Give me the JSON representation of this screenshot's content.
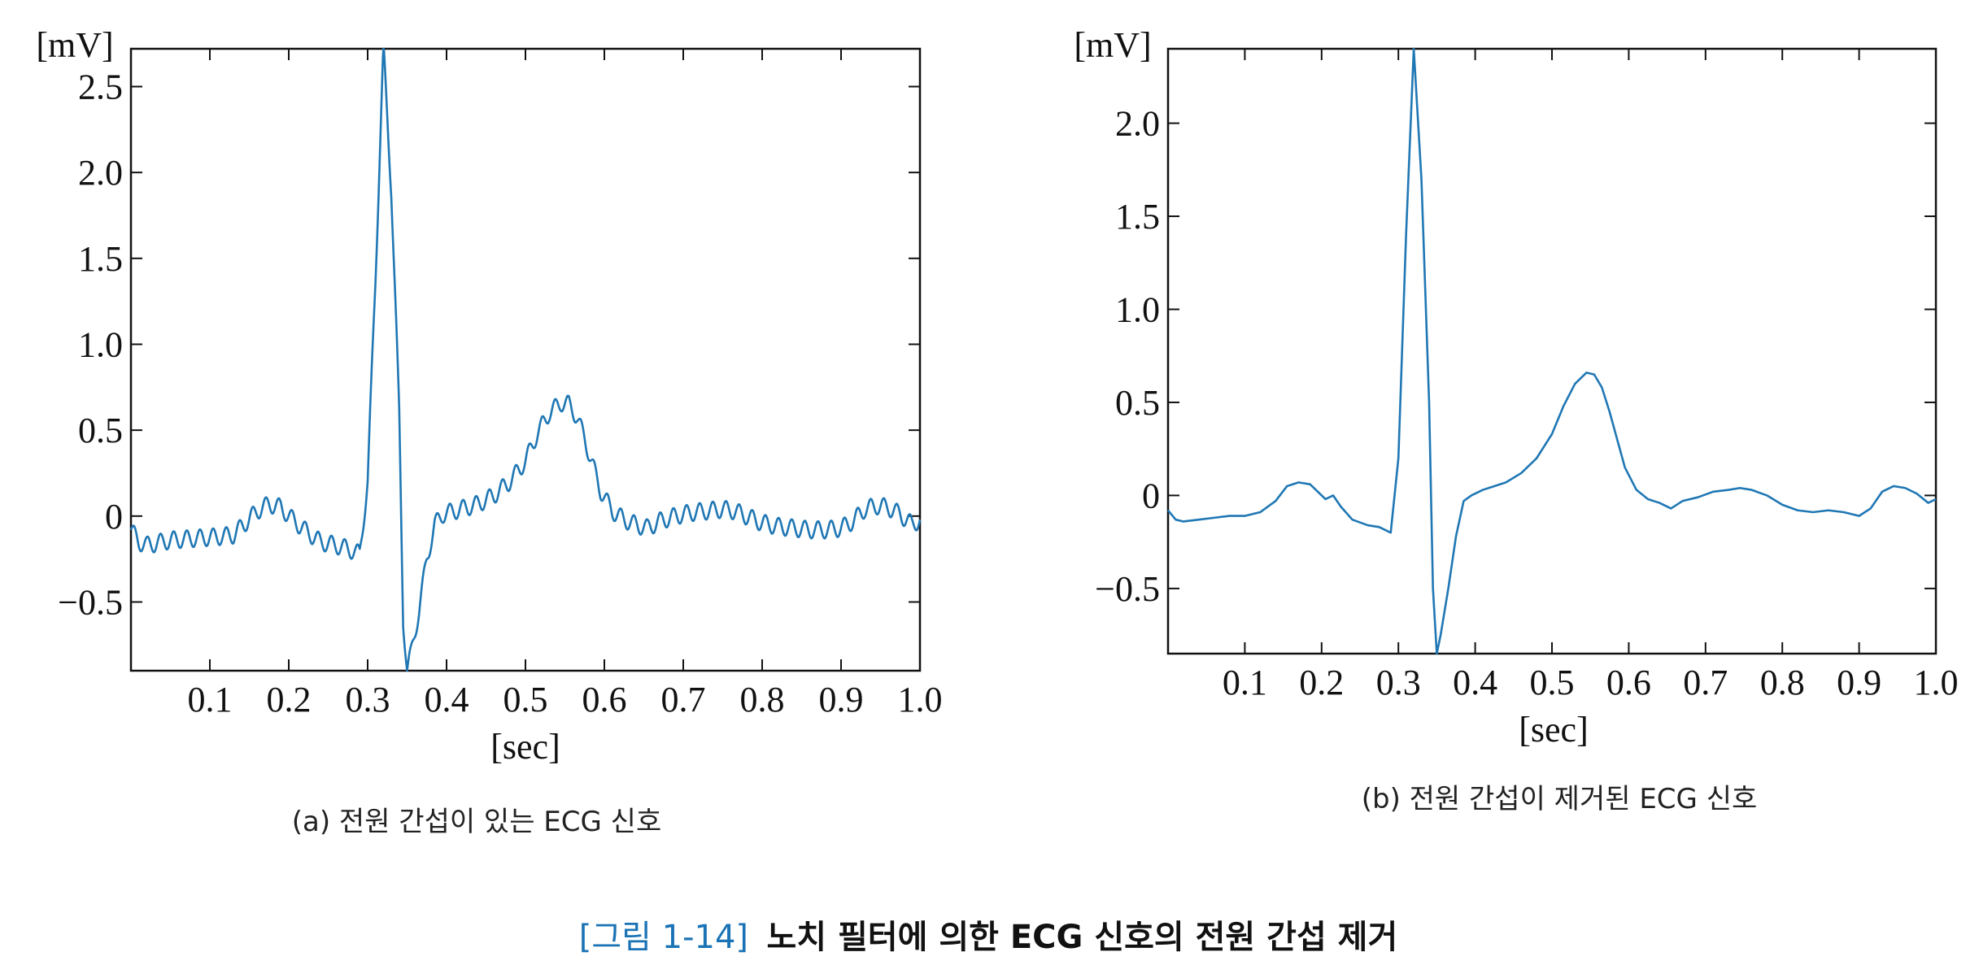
{
  "chart_data": [
    {
      "type": "line",
      "ylabel": "[mV]",
      "xlabel": "[sec]",
      "caption": "(a) 전원 간섭이 있는 ECG 신호",
      "xlim": [
        0.0,
        1.0
      ],
      "ylim": [
        -0.9,
        2.72
      ],
      "x_ticks": [
        0.1,
        0.2,
        0.3,
        0.4,
        0.5,
        0.6,
        0.7,
        0.8,
        0.9,
        1.0
      ],
      "x_tick_labels": [
        "0.1",
        "0.2",
        "0.3",
        "0.4",
        "0.5",
        "0.6",
        "0.7",
        "0.8",
        "0.9",
        "1.0"
      ],
      "y_ticks": [
        -0.5,
        0,
        0.5,
        1.0,
        1.5,
        2.0,
        2.5
      ],
      "y_tick_labels": [
        "−0.5",
        "0",
        "0.5",
        "1.0",
        "1.5",
        "2.0",
        "2.5"
      ],
      "grid": false,
      "series": [
        {
          "color": "#1f77b4",
          "points": [
            [
              0.0,
              -0.08
            ],
            [
              0.01,
              -0.15
            ],
            [
              0.02,
              -0.17
            ],
            [
              0.03,
              -0.16
            ],
            [
              0.05,
              -0.14
            ],
            [
              0.08,
              -0.13
            ],
            [
              0.11,
              -0.12
            ],
            [
              0.13,
              -0.11
            ],
            [
              0.145,
              -0.04
            ],
            [
              0.16,
              0.03
            ],
            [
              0.175,
              0.07
            ],
            [
              0.19,
              0.05
            ],
            [
              0.205,
              -0.02
            ],
            [
              0.22,
              -0.08
            ],
            [
              0.24,
              -0.15
            ],
            [
              0.26,
              -0.17
            ],
            [
              0.275,
              -0.19
            ],
            [
              0.29,
              -0.22
            ],
            [
              0.3,
              0.2
            ],
            [
              0.31,
              1.4
            ],
            [
              0.32,
              2.72
            ],
            [
              0.33,
              1.9
            ],
            [
              0.34,
              0.6
            ],
            [
              0.345,
              -0.6
            ],
            [
              0.35,
              -0.9
            ],
            [
              0.355,
              -0.8
            ],
            [
              0.365,
              -0.55
            ],
            [
              0.375,
              -0.25
            ],
            [
              0.385,
              -0.05
            ],
            [
              0.395,
              0.01
            ],
            [
              0.41,
              0.03
            ],
            [
              0.425,
              0.05
            ],
            [
              0.44,
              0.07
            ],
            [
              0.46,
              0.12
            ],
            [
              0.48,
              0.2
            ],
            [
              0.5,
              0.32
            ],
            [
              0.515,
              0.48
            ],
            [
              0.53,
              0.6
            ],
            [
              0.545,
              0.66
            ],
            [
              0.555,
              0.65
            ],
            [
              0.565,
              0.58
            ],
            [
              0.575,
              0.45
            ],
            [
              0.585,
              0.3
            ],
            [
              0.595,
              0.15
            ],
            [
              0.61,
              0.03
            ],
            [
              0.625,
              -0.02
            ],
            [
              0.64,
              -0.05
            ],
            [
              0.655,
              -0.07
            ],
            [
              0.67,
              -0.03
            ],
            [
              0.69,
              0.0
            ],
            [
              0.71,
              0.02
            ],
            [
              0.73,
              0.03
            ],
            [
              0.75,
              0.04
            ],
            [
              0.765,
              0.03
            ],
            [
              0.78,
              0.0
            ],
            [
              0.8,
              -0.04
            ],
            [
              0.82,
              -0.06
            ],
            [
              0.84,
              -0.07
            ],
            [
              0.86,
              -0.08
            ],
            [
              0.88,
              -0.08
            ],
            [
              0.9,
              -0.07
            ],
            [
              0.915,
              -0.03
            ],
            [
              0.93,
              0.04
            ],
            [
              0.945,
              0.06
            ],
            [
              0.96,
              0.05
            ],
            [
              0.975,
              0.01
            ],
            [
              0.99,
              -0.05
            ],
            [
              1.0,
              -0.02
            ]
          ],
          "interference": {
            "frequency_hz": 60,
            "amplitude_mv": 0.05
          }
        }
      ]
    },
    {
      "type": "line",
      "ylabel": "[mV]",
      "xlabel": "[sec]",
      "caption": "(b) 전원 간섭이 제거된 ECG 신호",
      "xlim": [
        0.0,
        1.0
      ],
      "ylim": [
        -0.85,
        2.4
      ],
      "x_ticks": [
        0.1,
        0.2,
        0.3,
        0.4,
        0.5,
        0.6,
        0.7,
        0.8,
        0.9,
        1.0
      ],
      "x_tick_labels": [
        "0.1",
        "0.2",
        "0.3",
        "0.4",
        "0.5",
        "0.6",
        "0.7",
        "0.8",
        "0.9",
        "1.0"
      ],
      "y_ticks": [
        -0.5,
        0,
        0.5,
        1.0,
        1.5,
        2.0
      ],
      "y_tick_labels": [
        "−0.5",
        "0",
        "0.5",
        "1.0",
        "1.5",
        "2.0"
      ],
      "grid": false,
      "series": [
        {
          "color": "#1f77b4",
          "points": [
            [
              0.0,
              -0.08
            ],
            [
              0.01,
              -0.13
            ],
            [
              0.02,
              -0.14
            ],
            [
              0.04,
              -0.13
            ],
            [
              0.06,
              -0.12
            ],
            [
              0.08,
              -0.11
            ],
            [
              0.1,
              -0.11
            ],
            [
              0.12,
              -0.09
            ],
            [
              0.14,
              -0.03
            ],
            [
              0.155,
              0.05
            ],
            [
              0.17,
              0.07
            ],
            [
              0.185,
              0.06
            ],
            [
              0.195,
              0.02
            ],
            [
              0.205,
              -0.02
            ],
            [
              0.215,
              0.0
            ],
            [
              0.225,
              -0.06
            ],
            [
              0.24,
              -0.13
            ],
            [
              0.26,
              -0.16
            ],
            [
              0.275,
              -0.17
            ],
            [
              0.29,
              -0.2
            ],
            [
              0.3,
              0.2
            ],
            [
              0.31,
              1.4
            ],
            [
              0.32,
              2.4
            ],
            [
              0.33,
              1.7
            ],
            [
              0.34,
              0.5
            ],
            [
              0.345,
              -0.5
            ],
            [
              0.35,
              -0.85
            ],
            [
              0.355,
              -0.75
            ],
            [
              0.365,
              -0.5
            ],
            [
              0.375,
              -0.22
            ],
            [
              0.385,
              -0.03
            ],
            [
              0.395,
              0.0
            ],
            [
              0.41,
              0.03
            ],
            [
              0.425,
              0.05
            ],
            [
              0.44,
              0.07
            ],
            [
              0.46,
              0.12
            ],
            [
              0.48,
              0.2
            ],
            [
              0.5,
              0.33
            ],
            [
              0.515,
              0.48
            ],
            [
              0.53,
              0.6
            ],
            [
              0.545,
              0.66
            ],
            [
              0.555,
              0.65
            ],
            [
              0.565,
              0.58
            ],
            [
              0.575,
              0.45
            ],
            [
              0.585,
              0.3
            ],
            [
              0.595,
              0.15
            ],
            [
              0.61,
              0.03
            ],
            [
              0.625,
              -0.02
            ],
            [
              0.64,
              -0.04
            ],
            [
              0.655,
              -0.07
            ],
            [
              0.67,
              -0.03
            ],
            [
              0.69,
              -0.01
            ],
            [
              0.71,
              0.02
            ],
            [
              0.73,
              0.03
            ],
            [
              0.745,
              0.04
            ],
            [
              0.76,
              0.03
            ],
            [
              0.78,
              0.0
            ],
            [
              0.8,
              -0.05
            ],
            [
              0.82,
              -0.08
            ],
            [
              0.84,
              -0.09
            ],
            [
              0.86,
              -0.08
            ],
            [
              0.88,
              -0.09
            ],
            [
              0.9,
              -0.11
            ],
            [
              0.915,
              -0.07
            ],
            [
              0.93,
              0.02
            ],
            [
              0.945,
              0.05
            ],
            [
              0.96,
              0.04
            ],
            [
              0.975,
              0.01
            ],
            [
              0.99,
              -0.04
            ],
            [
              1.0,
              -0.02
            ]
          ]
        }
      ]
    }
  ],
  "figure": {
    "number": "[그림 1-14]",
    "title": "노치 필터에 의한 ECG 신호의 전원 간섭 제거"
  }
}
